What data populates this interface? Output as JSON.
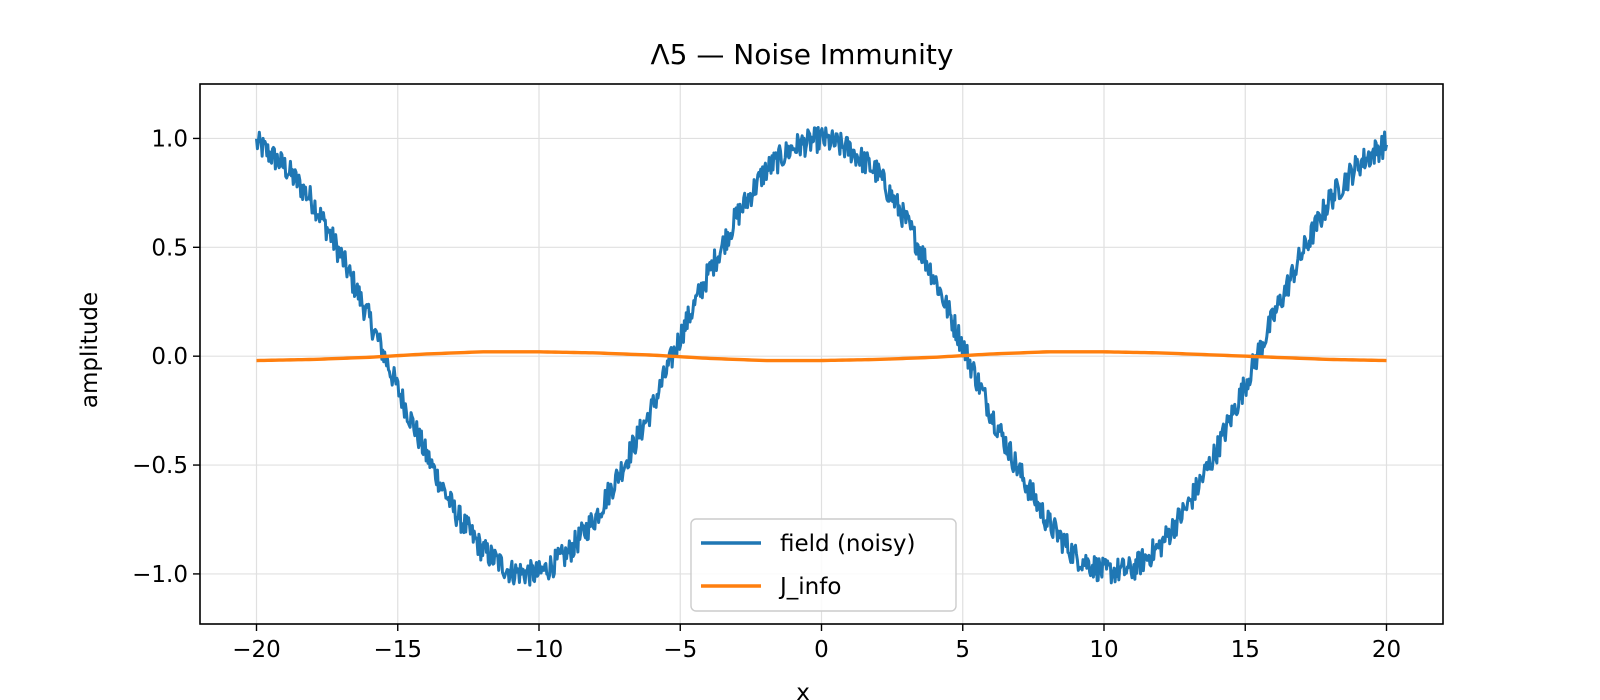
{
  "chart_data": {
    "type": "line",
    "title": "Λ5 — Noise Immunity",
    "xlabel": "x",
    "ylabel": "amplitude",
    "xlim": [
      -22,
      22
    ],
    "ylim": [
      -1.23,
      1.25
    ],
    "grid": true,
    "legend_position": "lower-center",
    "x_ticks": [
      {
        "value": -20,
        "label": "−20"
      },
      {
        "value": -15,
        "label": "−15"
      },
      {
        "value": -10,
        "label": "−10"
      },
      {
        "value": -5,
        "label": "−5"
      },
      {
        "value": 0,
        "label": "0"
      },
      {
        "value": 5,
        "label": "5"
      },
      {
        "value": 10,
        "label": "10"
      },
      {
        "value": 15,
        "label": "15"
      },
      {
        "value": 20,
        "label": "20"
      }
    ],
    "y_ticks": [
      {
        "value": -1.0,
        "label": "−1.0"
      },
      {
        "value": -0.5,
        "label": "−0.5"
      },
      {
        "value": 0.0,
        "label": "0.0"
      },
      {
        "value": 0.5,
        "label": "0.5"
      },
      {
        "value": 1.0,
        "label": "1.0"
      }
    ],
    "series": [
      {
        "name": "field (noisy)",
        "color": "#1f77b4",
        "x": [
          -20,
          -19,
          -18,
          -17,
          -16,
          -15,
          -14,
          -13,
          -12,
          -11,
          -10,
          -9,
          -8,
          -7,
          -6,
          -5,
          -4,
          -3,
          -2,
          -1,
          0,
          1,
          2,
          3,
          4,
          5,
          6,
          7,
          8,
          9,
          10,
          11,
          12,
          13,
          14,
          15,
          16,
          17,
          18,
          19,
          20
        ],
        "y": [
          0.98,
          0.87,
          0.71,
          0.46,
          0.17,
          -0.15,
          -0.45,
          -0.71,
          -0.89,
          -0.99,
          -1.0,
          -0.91,
          -0.74,
          -0.5,
          -0.24,
          0.09,
          0.38,
          0.64,
          0.85,
          0.96,
          1.0,
          0.95,
          0.84,
          0.62,
          0.36,
          0.05,
          -0.26,
          -0.53,
          -0.76,
          -0.92,
          -0.99,
          -0.98,
          -0.87,
          -0.68,
          -0.43,
          -0.13,
          0.18,
          0.47,
          0.72,
          0.88,
          0.98
        ],
        "noise_amplitude": 0.06
      },
      {
        "name": "J_info",
        "color": "#ff7f0e",
        "x": [
          -20,
          -18,
          -16,
          -14,
          -12,
          -10,
          -8,
          -6,
          -4,
          -2,
          0,
          2,
          4,
          6,
          8,
          10,
          12,
          14,
          16,
          18,
          20
        ],
        "y": [
          -0.02,
          -0.015,
          -0.005,
          0.01,
          0.02,
          0.02,
          0.015,
          0.005,
          -0.01,
          -0.02,
          -0.02,
          -0.015,
          -0.005,
          0.01,
          0.02,
          0.02,
          0.015,
          0.005,
          -0.005,
          -0.015,
          -0.02
        ]
      }
    ]
  }
}
